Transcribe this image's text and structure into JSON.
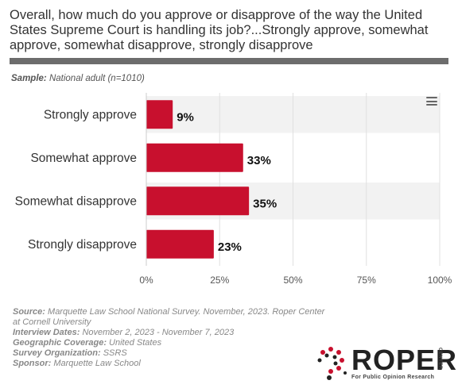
{
  "title": "Overall, how much do you approve or disapprove of the way the United States Supreme Court is handling its job?...Strongly approve, somewhat approve, somewhat disapprove, strongly disapprove",
  "sample": {
    "label": "Sample:",
    "value": "National adult (n=1010)"
  },
  "menu_icon": "hamburger-menu-icon",
  "colors": {
    "bar": "#c8102e",
    "band": "#f2f2f2",
    "grid": "#e0e0e0"
  },
  "chart_data": {
    "type": "bar",
    "orientation": "horizontal",
    "categories": [
      "Strongly approve",
      "Somewhat approve",
      "Somewhat disapprove",
      "Strongly disapprove"
    ],
    "values": [
      9,
      33,
      35,
      23
    ],
    "data_labels": [
      "9%",
      "33%",
      "35%",
      "23%"
    ],
    "xlim": [
      0,
      100
    ],
    "xticks": [
      "0%",
      "25%",
      "50%",
      "75%",
      "100%"
    ],
    "grid": true,
    "title": "",
    "xlabel": "",
    "ylabel": ""
  },
  "footer": [
    {
      "label": "Source:",
      "value": "Marquette Law School National Survey. November, 2023. Roper Center at Cornell University"
    },
    {
      "label": "Interview Dates:",
      "value": "November 2, 2023 - November 7, 2023"
    },
    {
      "label": "Geographic Coverage:",
      "value": "United States"
    },
    {
      "label": "Survey Organization:",
      "value": "SSRS"
    },
    {
      "label": "Sponsor:",
      "value": "Marquette Law School"
    }
  ],
  "logo": {
    "word": "ROPER",
    "side": "CENTER",
    "tagline": "For Public Opinion Research"
  }
}
